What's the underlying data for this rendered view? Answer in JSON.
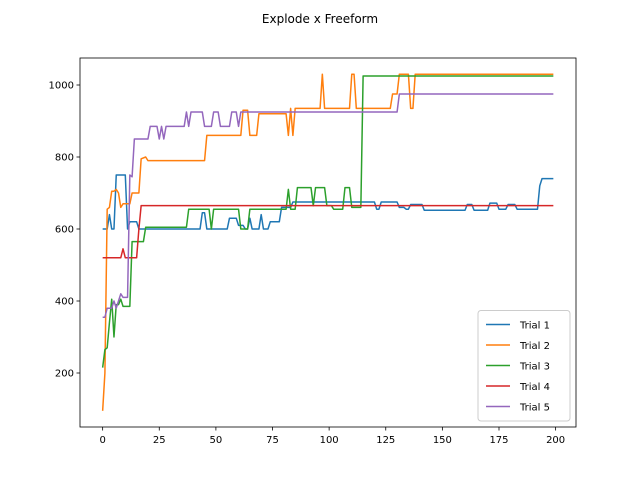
{
  "chart_data": {
    "type": "line",
    "title": "Explode x Freeform",
    "xlabel": "",
    "ylabel": "",
    "xlim": [
      -10,
      209
    ],
    "ylim": [
      50,
      1075
    ],
    "xticks": [
      0,
      25,
      50,
      75,
      100,
      125,
      150,
      175,
      200
    ],
    "yticks": [
      200,
      400,
      600,
      800,
      1000
    ],
    "grid": false,
    "legend_position": "lower right",
    "series": [
      {
        "name": "Trial 1",
        "color": "#1f77b4",
        "points": [
          [
            0,
            600
          ],
          [
            2,
            600
          ],
          [
            3,
            640
          ],
          [
            4,
            600
          ],
          [
            5,
            600
          ],
          [
            6,
            750
          ],
          [
            10,
            750
          ],
          [
            11,
            600
          ],
          [
            12,
            620
          ],
          [
            15,
            620
          ],
          [
            16,
            600
          ],
          [
            43,
            600
          ],
          [
            44,
            645
          ],
          [
            45,
            645
          ],
          [
            46,
            600
          ],
          [
            55,
            600
          ],
          [
            56,
            630
          ],
          [
            59,
            630
          ],
          [
            60,
            610
          ],
          [
            62,
            610
          ],
          [
            63,
            600
          ],
          [
            64,
            600
          ],
          [
            65,
            630
          ],
          [
            66,
            600
          ],
          [
            69,
            600
          ],
          [
            70,
            640
          ],
          [
            71,
            600
          ],
          [
            73,
            600
          ],
          [
            74,
            620
          ],
          [
            78,
            620
          ],
          [
            79,
            660
          ],
          [
            83,
            660
          ],
          [
            84,
            675
          ],
          [
            115,
            675
          ],
          [
            120,
            675
          ],
          [
            121,
            655
          ],
          [
            122,
            655
          ],
          [
            123,
            675
          ],
          [
            130,
            675
          ],
          [
            131,
            660
          ],
          [
            133,
            660
          ],
          [
            134,
            655
          ],
          [
            135,
            655
          ],
          [
            136,
            668
          ],
          [
            141,
            668
          ],
          [
            142,
            652
          ],
          [
            160,
            652
          ],
          [
            161,
            668
          ],
          [
            163,
            668
          ],
          [
            164,
            652
          ],
          [
            170,
            652
          ],
          [
            171,
            672
          ],
          [
            174,
            672
          ],
          [
            175,
            655
          ],
          [
            178,
            655
          ],
          [
            179,
            668
          ],
          [
            182,
            668
          ],
          [
            183,
            655
          ],
          [
            192,
            655
          ],
          [
            193,
            720
          ],
          [
            194,
            740
          ],
          [
            199,
            740
          ]
        ]
      },
      {
        "name": "Trial 2",
        "color": "#ff7f0e",
        "points": [
          [
            0,
            95
          ],
          [
            1,
            200
          ],
          [
            2,
            655
          ],
          [
            3,
            660
          ],
          [
            4,
            705
          ],
          [
            5,
            705
          ],
          [
            6,
            710
          ],
          [
            7,
            700
          ],
          [
            8,
            660
          ],
          [
            9,
            670
          ],
          [
            12,
            670
          ],
          [
            13,
            700
          ],
          [
            16,
            700
          ],
          [
            17,
            795
          ],
          [
            19,
            800
          ],
          [
            20,
            790
          ],
          [
            45,
            790
          ],
          [
            46,
            860
          ],
          [
            61,
            860
          ],
          [
            62,
            930
          ],
          [
            64,
            930
          ],
          [
            65,
            860
          ],
          [
            68,
            860
          ],
          [
            69,
            920
          ],
          [
            81,
            920
          ],
          [
            82,
            860
          ],
          [
            83,
            935
          ],
          [
            84,
            860
          ],
          [
            85,
            935
          ],
          [
            96,
            935
          ],
          [
            97,
            1030
          ],
          [
            98,
            935
          ],
          [
            109,
            935
          ],
          [
            110,
            1030
          ],
          [
            111,
            1030
          ],
          [
            112,
            935
          ],
          [
            127,
            935
          ],
          [
            128,
            975
          ],
          [
            130,
            975
          ],
          [
            131,
            1030
          ],
          [
            135,
            1030
          ],
          [
            136,
            935
          ],
          [
            137,
            935
          ],
          [
            138,
            1030
          ],
          [
            199,
            1030
          ]
        ]
      },
      {
        "name": "Trial 3",
        "color": "#2ca02c",
        "points": [
          [
            0,
            215
          ],
          [
            1,
            265
          ],
          [
            2,
            270
          ],
          [
            3,
            340
          ],
          [
            4,
            405
          ],
          [
            5,
            300
          ],
          [
            6,
            390
          ],
          [
            7,
            390
          ],
          [
            8,
            405
          ],
          [
            9,
            385
          ],
          [
            12,
            385
          ],
          [
            13,
            565
          ],
          [
            18,
            565
          ],
          [
            19,
            605
          ],
          [
            37,
            605
          ],
          [
            38,
            655
          ],
          [
            47,
            655
          ],
          [
            48,
            600
          ],
          [
            49,
            655
          ],
          [
            60,
            655
          ],
          [
            61,
            600
          ],
          [
            64,
            600
          ],
          [
            65,
            655
          ],
          [
            81,
            655
          ],
          [
            82,
            710
          ],
          [
            83,
            655
          ],
          [
            85,
            655
          ],
          [
            86,
            715
          ],
          [
            92,
            715
          ],
          [
            93,
            665
          ],
          [
            94,
            715
          ],
          [
            98,
            715
          ],
          [
            99,
            665
          ],
          [
            101,
            665
          ],
          [
            102,
            655
          ],
          [
            106,
            655
          ],
          [
            107,
            715
          ],
          [
            109,
            715
          ],
          [
            110,
            660
          ],
          [
            114,
            660
          ],
          [
            115,
            1025
          ],
          [
            199,
            1025
          ]
        ]
      },
      {
        "name": "Trial 4",
        "color": "#d62728",
        "points": [
          [
            0,
            520
          ],
          [
            8,
            520
          ],
          [
            9,
            545
          ],
          [
            10,
            520
          ],
          [
            15,
            520
          ],
          [
            16,
            600
          ],
          [
            17,
            665
          ],
          [
            199,
            665
          ]
        ]
      },
      {
        "name": "Trial 5",
        "color": "#9467bd",
        "points": [
          [
            0,
            355
          ],
          [
            1,
            355
          ],
          [
            2,
            380
          ],
          [
            3,
            380
          ],
          [
            4,
            380
          ],
          [
            5,
            400
          ],
          [
            6,
            380
          ],
          [
            7,
            400
          ],
          [
            8,
            420
          ],
          [
            9,
            410
          ],
          [
            11,
            410
          ],
          [
            12,
            750
          ],
          [
            13,
            745
          ],
          [
            14,
            850
          ],
          [
            20,
            850
          ],
          [
            21,
            885
          ],
          [
            24,
            885
          ],
          [
            25,
            850
          ],
          [
            26,
            885
          ],
          [
            27,
            850
          ],
          [
            28,
            885
          ],
          [
            36,
            885
          ],
          [
            37,
            925
          ],
          [
            38,
            885
          ],
          [
            39,
            925
          ],
          [
            44,
            925
          ],
          [
            45,
            885
          ],
          [
            48,
            885
          ],
          [
            49,
            925
          ],
          [
            51,
            925
          ],
          [
            52,
            885
          ],
          [
            56,
            885
          ],
          [
            57,
            925
          ],
          [
            59,
            925
          ],
          [
            60,
            885
          ],
          [
            61,
            925
          ],
          [
            64,
            925
          ],
          [
            130,
            925
          ],
          [
            131,
            975
          ],
          [
            199,
            975
          ]
        ]
      }
    ]
  }
}
